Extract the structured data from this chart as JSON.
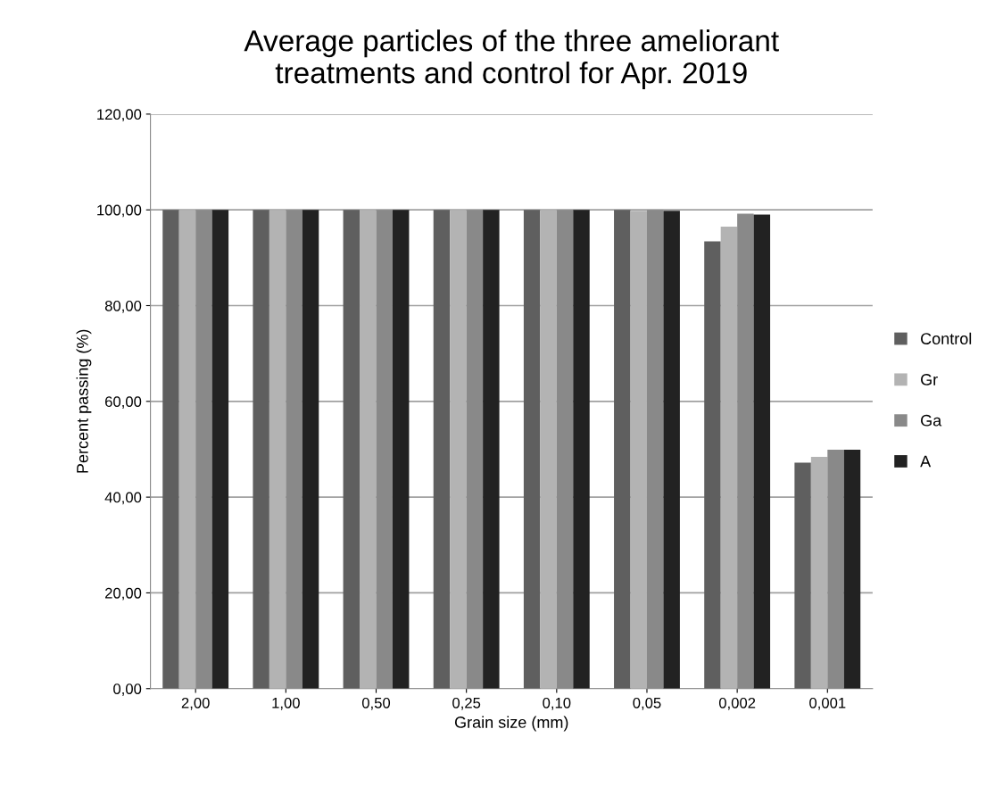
{
  "chart_data": {
    "type": "bar",
    "title": "Average particles of the three ameliorant\ntreatments and control for Apr. 2019",
    "xlabel": "Grain size (mm)",
    "ylabel": "Percent passing (%)",
    "categories": [
      "2,00",
      "1,00",
      "0,50",
      "0,25",
      "0,10",
      "0,05",
      "0,002",
      "0,001"
    ],
    "series": [
      {
        "name": "Control",
        "color": "#5f5f5f",
        "values": [
          100,
          100,
          100,
          100,
          100,
          100,
          93.4,
          47.2
        ]
      },
      {
        "name": "Gr",
        "color": "#b3b3b3",
        "values": [
          100,
          100,
          100,
          100,
          100,
          99.8,
          96.5,
          48.4
        ]
      },
      {
        "name": "Ga",
        "color": "#898989",
        "values": [
          100,
          100,
          100,
          100,
          100,
          100,
          99.2,
          49.9
        ]
      },
      {
        "name": "A",
        "color": "#222222",
        "values": [
          100,
          100,
          100,
          100,
          100,
          99.8,
          99.0,
          49.9
        ]
      }
    ],
    "ylim": [
      0,
      120
    ],
    "yticks": [
      {
        "value": 0,
        "label": "0,00"
      },
      {
        "value": 20,
        "label": "20,00"
      },
      {
        "value": 40,
        "label": "40,00"
      },
      {
        "value": 60,
        "label": "60,00"
      },
      {
        "value": 80,
        "label": "80,00"
      },
      {
        "value": 100,
        "label": "100,00"
      },
      {
        "value": 120,
        "label": "120,00"
      }
    ],
    "grid": "y",
    "legend": "right"
  }
}
